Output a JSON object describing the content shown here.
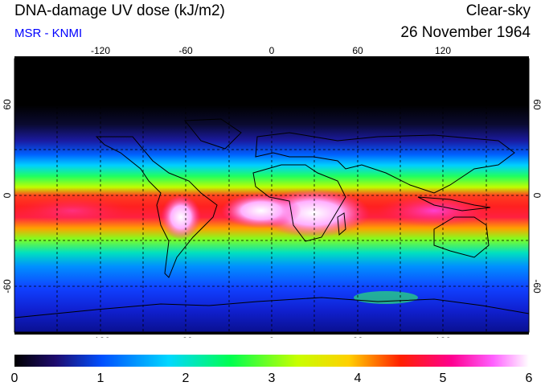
{
  "header": {
    "title": "DNA-damage UV dose (kJ/m2)",
    "source": "MSR - KNMI",
    "sky_condition": "Clear-sky",
    "date": "26 November 1964"
  },
  "map": {
    "projection": "lat-lon",
    "lon_range": [
      -180,
      180
    ],
    "lat_range": [
      -90,
      90
    ],
    "grid": "dashed 30-degree",
    "lon_ticks": [
      "-120",
      "-60",
      "0",
      "60",
      "120"
    ],
    "lat_ticks": [
      "60",
      "0",
      "-60"
    ],
    "lat_ticks_right": [
      "60",
      "0",
      "-60"
    ]
  },
  "colorbar": {
    "tick_labels": [
      "0",
      "1",
      "2",
      "3",
      "4",
      "5",
      "6"
    ],
    "range": [
      0,
      6
    ],
    "colors": [
      "#000000",
      "#1e0b6e",
      "#0050ff",
      "#00d8ff",
      "#00ff50",
      "#c8ff00",
      "#ffd000",
      "#ff2000",
      "#ff0090",
      "#ff60ff",
      "#ffffff"
    ]
  }
}
